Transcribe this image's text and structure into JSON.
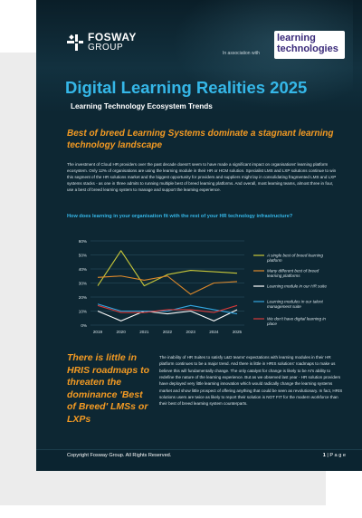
{
  "header": {
    "brand_line1": "FOSWAY",
    "brand_line2": "GROUP",
    "association_text": "In association with",
    "partner_logo_line1": "learning",
    "partner_logo_line2": "technologies"
  },
  "title": "Digital Learning Realities 2025",
  "subtitle": "Learning Technology Ecosystem Trends",
  "section1": {
    "heading": "Best of breed Learning Systems dominate a stagnant learning technology landscape",
    "body": "The investment of Cloud HR providers over the past decade doesn't seem to have made a significant impact on organisations' learning platform ecosystem. Only 12% of organisations are using the learning module in their HR or HCM solution. Specialist LMS and LXP solutions continue to win this segment of the HR solutions market and the biggest opportunity for providers and suppliers might lay in consolidating fragmented LMS and LXP systems stacks - as one in three admits to running multiple best of breed learning platforms. And overall, most learning teams, almost three in four, use a best of breed learning system to manage and support the learning experience."
  },
  "chart_question": "How does learning in your organisation fit with the rest of your HR technology infrastructure?",
  "chart_data": {
    "type": "line",
    "x": [
      "2019",
      "2020",
      "2021",
      "2022",
      "2023",
      "2024",
      "2025"
    ],
    "ylim": [
      0,
      60
    ],
    "yticks": [
      "0%",
      "10%",
      "20%",
      "30%",
      "40%",
      "50%",
      "60%"
    ],
    "grid": true,
    "legend_position": "right",
    "series": [
      {
        "name": "A single best of breed learning platform",
        "color": "#c9c93a",
        "values": [
          28,
          53,
          28,
          36,
          39,
          38,
          37
        ]
      },
      {
        "name": "Many different best of breed learning platforms",
        "color": "#e08a2a",
        "values": [
          34,
          35,
          32,
          35,
          22,
          30,
          31
        ]
      },
      {
        "name": "Learning module in our HR suite",
        "color": "#ffffff",
        "values": [
          10,
          3,
          10,
          8,
          10,
          3,
          11
        ]
      },
      {
        "name": "Learning modules in our talent management suite",
        "color": "#33a6e0",
        "values": [
          15,
          10,
          10,
          10,
          14,
          11,
          8
        ]
      },
      {
        "name": "We don't have digital learning in place",
        "color": "#d83a3a",
        "values": [
          14,
          9,
          9,
          11,
          11,
          9,
          14
        ]
      }
    ]
  },
  "section2": {
    "heading": "There is little in HRIS roadmaps to threaten the dominance 'Best of Breed' LMSs or LXPs",
    "body": "The inability of HR Suites to satisfy L&D teams' expectations with learning modules in their HR platform continues to be a major trend. And there is little in HRIS solutions' roadmaps to make us believe this will fundamentally change. The only catalyst for change is likely to be AI's ability to redefine the nature of the learning experience. But as we observed last year - HR solution providers have deployed very little learning innovation which would radically change the learning systems market and show little prospect of offering anything that could be seen as revolutionary. In fact, HRIS solutions users are twice as likely to report their solution is NOT FIT for the modern workforce than their best of breed learning system counterparts."
  },
  "footer": {
    "copyright": "Copyright Fosway Group. All Rights Reserved.",
    "page_number": "1",
    "page_label": " | P a g e"
  }
}
